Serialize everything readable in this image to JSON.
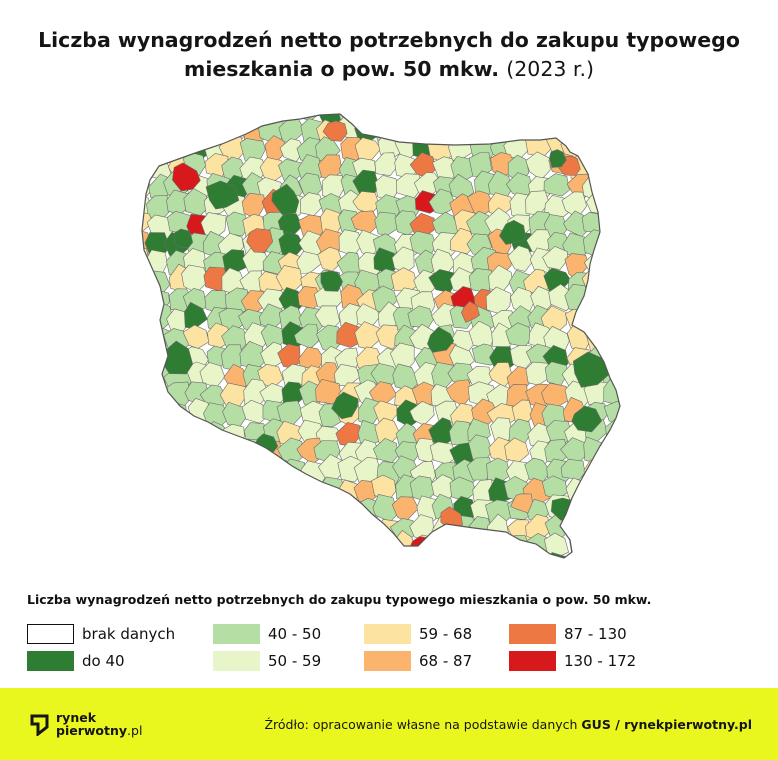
{
  "title": {
    "line1": "Liczba wynagrodzeń netto potrzebnych do zakupu typowego",
    "line2": "mieszkania o pow. 50 mkw.",
    "year": "(2023 r.)"
  },
  "map": {
    "region": "Polska",
    "unit": "powiaty",
    "border_color": "#6b6b6b"
  },
  "legend": {
    "title": "Liczba wynagrodzeń netto potrzebnych do zakupu typowego mieszkania o pow. 50 mkw.",
    "items": [
      {
        "label": "brak danych",
        "color": "#ffffff",
        "outline": true
      },
      {
        "label": "do 40",
        "color": "#2e7d32"
      },
      {
        "label": "40 - 50",
        "color": "#b5dea5"
      },
      {
        "label": "50 - 59",
        "color": "#e8f5c8"
      },
      {
        "label": "59 - 68",
        "color": "#fde3a1"
      },
      {
        "label": "68 - 87",
        "color": "#fbb46e"
      },
      {
        "label": "87 - 130",
        "color": "#ee7844"
      },
      {
        "label": "130 - 172",
        "color": "#d7191c"
      }
    ]
  },
  "footer": {
    "background": "#eaf71f",
    "logo_line1": "rynek",
    "logo_line2": "pierwotny",
    "logo_tld": ".pl",
    "logo_icon": "rynekpierwotny-logo-icon",
    "source_prefix": "Źródło: opracowanie własne na podstawie danych ",
    "source_gus": "GUS",
    "source_sep": " / ",
    "source_site": "rynekpierwotny.pl"
  }
}
